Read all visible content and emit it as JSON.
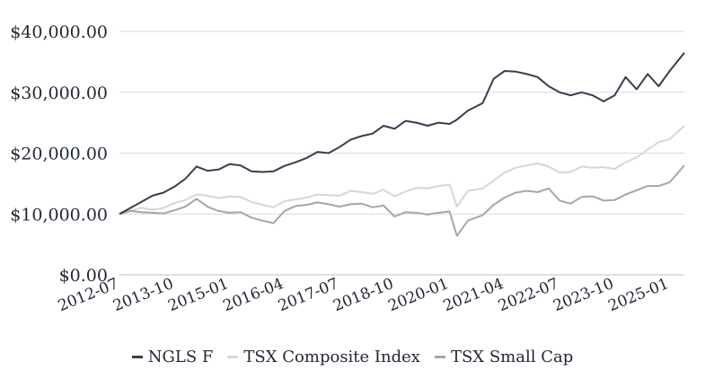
{
  "chart_data": {
    "type": "line",
    "title": "",
    "xlabel": "",
    "ylabel": "",
    "ylim": [
      0,
      40000
    ],
    "y_ticks": [
      0,
      10000,
      20000,
      30000,
      40000
    ],
    "y_tick_labels": [
      "$0.00",
      "$10,000.00",
      "$20,000.00",
      "$30,000.00",
      "$40,000.00"
    ],
    "x_range": [
      "2012-07",
      "2025-05"
    ],
    "x_ticks": [
      "2012-07",
      "2013-10",
      "2015-01",
      "2016-04",
      "2017-07",
      "2018-10",
      "2020-01",
      "2021-04",
      "2022-07",
      "2023-10",
      "2025-01"
    ],
    "grid": "horizontal",
    "legend": "bottom-center",
    "series": [
      {
        "name": "NGLS F",
        "color": "#34404f",
        "points": [
          [
            "2012-07",
            10000
          ],
          [
            "2012-10",
            11000
          ],
          [
            "2013-01",
            12000
          ],
          [
            "2013-04",
            13000
          ],
          [
            "2013-07",
            13500
          ],
          [
            "2013-10",
            14500
          ],
          [
            "2014-01",
            15800
          ],
          [
            "2014-04",
            17800
          ],
          [
            "2014-07",
            17100
          ],
          [
            "2014-10",
            17300
          ],
          [
            "2015-01",
            18200
          ],
          [
            "2015-04",
            18000
          ],
          [
            "2015-07",
            17000
          ],
          [
            "2015-10",
            16900
          ],
          [
            "2016-01",
            17000
          ],
          [
            "2016-04",
            17900
          ],
          [
            "2016-07",
            18500
          ],
          [
            "2016-10",
            19200
          ],
          [
            "2017-01",
            20200
          ],
          [
            "2017-04",
            20000
          ],
          [
            "2017-07",
            21000
          ],
          [
            "2017-10",
            22200
          ],
          [
            "2018-01",
            22800
          ],
          [
            "2018-04",
            23200
          ],
          [
            "2018-07",
            24500
          ],
          [
            "2018-10",
            24000
          ],
          [
            "2019-01",
            25300
          ],
          [
            "2019-04",
            25000
          ],
          [
            "2019-07",
            24500
          ],
          [
            "2019-10",
            25000
          ],
          [
            "2020-01",
            24800
          ],
          [
            "2020-03",
            25500
          ],
          [
            "2020-06",
            27000
          ],
          [
            "2020-10",
            28200
          ],
          [
            "2021-01",
            32200
          ],
          [
            "2021-04",
            33500
          ],
          [
            "2021-07",
            33400
          ],
          [
            "2021-10",
            33000
          ],
          [
            "2022-01",
            32500
          ],
          [
            "2022-04",
            31000
          ],
          [
            "2022-07",
            30000
          ],
          [
            "2022-10",
            29500
          ],
          [
            "2023-01",
            30000
          ],
          [
            "2023-04",
            29500
          ],
          [
            "2023-07",
            28500
          ],
          [
            "2023-10",
            29500
          ],
          [
            "2024-01",
            32500
          ],
          [
            "2024-04",
            30500
          ],
          [
            "2024-07",
            33000
          ],
          [
            "2024-10",
            31000
          ],
          [
            "2025-01",
            33500
          ],
          [
            "2025-05",
            36500
          ]
        ]
      },
      {
        "name": "TSX Composite Index",
        "color": "#d6d6d6",
        "points": [
          [
            "2012-07",
            10000
          ],
          [
            "2012-10",
            10600
          ],
          [
            "2013-01",
            11000
          ],
          [
            "2013-04",
            10700
          ],
          [
            "2013-07",
            11000
          ],
          [
            "2013-10",
            11800
          ],
          [
            "2014-01",
            12300
          ],
          [
            "2014-04",
            13200
          ],
          [
            "2014-07",
            13000
          ],
          [
            "2014-10",
            12600
          ],
          [
            "2015-01",
            12900
          ],
          [
            "2015-04",
            12800
          ],
          [
            "2015-07",
            12000
          ],
          [
            "2015-10",
            11500
          ],
          [
            "2016-01",
            11100
          ],
          [
            "2016-04",
            12100
          ],
          [
            "2016-07",
            12400
          ],
          [
            "2016-10",
            12700
          ],
          [
            "2017-01",
            13200
          ],
          [
            "2017-04",
            13100
          ],
          [
            "2017-07",
            13000
          ],
          [
            "2017-10",
            13800
          ],
          [
            "2018-01",
            13600
          ],
          [
            "2018-04",
            13300
          ],
          [
            "2018-07",
            14000
          ],
          [
            "2018-10",
            12900
          ],
          [
            "2019-01",
            13700
          ],
          [
            "2019-04",
            14300
          ],
          [
            "2019-07",
            14200
          ],
          [
            "2019-10",
            14600
          ],
          [
            "2020-01",
            14800
          ],
          [
            "2020-03",
            11200
          ],
          [
            "2020-06",
            13800
          ],
          [
            "2020-10",
            14200
          ],
          [
            "2021-01",
            15500
          ],
          [
            "2021-04",
            16800
          ],
          [
            "2021-07",
            17600
          ],
          [
            "2021-10",
            18000
          ],
          [
            "2022-01",
            18300
          ],
          [
            "2022-04",
            17800
          ],
          [
            "2022-07",
            16800
          ],
          [
            "2022-10",
            16900
          ],
          [
            "2023-01",
            17800
          ],
          [
            "2023-04",
            17600
          ],
          [
            "2023-07",
            17700
          ],
          [
            "2023-10",
            17400
          ],
          [
            "2024-01",
            18500
          ],
          [
            "2024-04",
            19300
          ],
          [
            "2024-07",
            20600
          ],
          [
            "2024-10",
            21800
          ],
          [
            "2025-01",
            22300
          ],
          [
            "2025-05",
            24500
          ]
        ]
      },
      {
        "name": "TSX Small Cap",
        "color": "#a6a6a6",
        "points": [
          [
            "2012-07",
            10000
          ],
          [
            "2012-10",
            10500
          ],
          [
            "2013-01",
            10300
          ],
          [
            "2013-04",
            10200
          ],
          [
            "2013-07",
            10100
          ],
          [
            "2013-10",
            10600
          ],
          [
            "2014-01",
            11200
          ],
          [
            "2014-04",
            12500
          ],
          [
            "2014-07",
            11200
          ],
          [
            "2014-10",
            10500
          ],
          [
            "2015-01",
            10200
          ],
          [
            "2015-04",
            10300
          ],
          [
            "2015-07",
            9400
          ],
          [
            "2015-10",
            8900
          ],
          [
            "2016-01",
            8500
          ],
          [
            "2016-04",
            10500
          ],
          [
            "2016-07",
            11300
          ],
          [
            "2016-10",
            11500
          ],
          [
            "2017-01",
            11900
          ],
          [
            "2017-04",
            11600
          ],
          [
            "2017-07",
            11200
          ],
          [
            "2017-10",
            11600
          ],
          [
            "2018-01",
            11700
          ],
          [
            "2018-04",
            11100
          ],
          [
            "2018-07",
            11400
          ],
          [
            "2018-10",
            9600
          ],
          [
            "2019-01",
            10300
          ],
          [
            "2019-04",
            10200
          ],
          [
            "2019-07",
            9900
          ],
          [
            "2019-10",
            10200
          ],
          [
            "2020-01",
            10400
          ],
          [
            "2020-03",
            6400
          ],
          [
            "2020-06",
            8900
          ],
          [
            "2020-10",
            9800
          ],
          [
            "2021-01",
            11500
          ],
          [
            "2021-04",
            12700
          ],
          [
            "2021-07",
            13500
          ],
          [
            "2021-10",
            13800
          ],
          [
            "2022-01",
            13600
          ],
          [
            "2022-04",
            14200
          ],
          [
            "2022-07",
            12200
          ],
          [
            "2022-10",
            11700
          ],
          [
            "2023-01",
            12800
          ],
          [
            "2023-04",
            12900
          ],
          [
            "2023-07",
            12200
          ],
          [
            "2023-10",
            12300
          ],
          [
            "2024-01",
            13200
          ],
          [
            "2024-04",
            13900
          ],
          [
            "2024-07",
            14600
          ],
          [
            "2024-10",
            14600
          ],
          [
            "2025-01",
            15200
          ],
          [
            "2025-05",
            18000
          ]
        ]
      }
    ]
  }
}
